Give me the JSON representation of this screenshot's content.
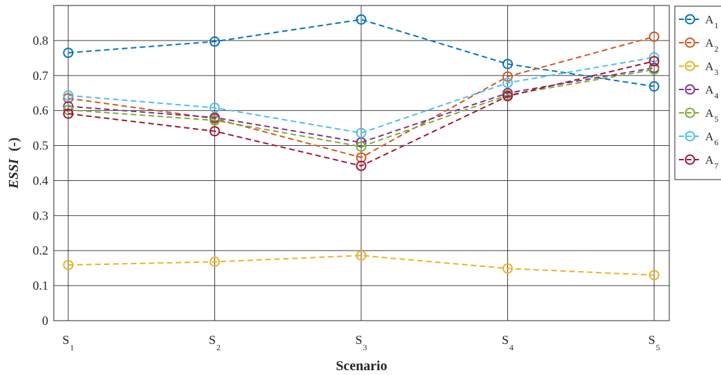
{
  "chart_data": {
    "type": "line",
    "xlabel": "Scenario",
    "ylabel_main": "ESSI",
    "ylabel_unit": "(-)",
    "categories": [
      {
        "base": "S",
        "sub": "1"
      },
      {
        "base": "S",
        "sub": "2"
      },
      {
        "base": "S",
        "sub": "3"
      },
      {
        "base": "S",
        "sub": "4"
      },
      {
        "base": "S",
        "sub": "5"
      }
    ],
    "ylim": [
      0,
      0.9
    ],
    "yticks": [
      "0",
      "0.1",
      "0.2",
      "0.3",
      "0.4",
      "0.5",
      "0.6",
      "0.7",
      "0.8"
    ],
    "grid": true,
    "legend_position": "outside-top-right",
    "series": [
      {
        "name": "A",
        "sub": "1",
        "color": "#0072BD",
        "values": [
          0.765,
          0.797,
          0.86,
          0.733,
          0.669
        ]
      },
      {
        "name": "A",
        "sub": "2",
        "color": "#D95319",
        "values": [
          0.635,
          0.577,
          0.466,
          0.697,
          0.811
        ]
      },
      {
        "name": "A",
        "sub": "3",
        "color": "#EDB120",
        "values": [
          0.159,
          0.168,
          0.186,
          0.149,
          0.13
        ]
      },
      {
        "name": "A",
        "sub": "4",
        "color": "#7E2F8E",
        "values": [
          0.612,
          0.58,
          0.509,
          0.65,
          0.722
        ]
      },
      {
        "name": "A",
        "sub": "5",
        "color": "#77AC30",
        "values": [
          0.602,
          0.572,
          0.497,
          0.644,
          0.717
        ]
      },
      {
        "name": "A",
        "sub": "6",
        "color": "#4DBEEE",
        "values": [
          0.643,
          0.608,
          0.536,
          0.679,
          0.752
        ]
      },
      {
        "name": "A",
        "sub": "7",
        "color": "#A2142F",
        "values": [
          0.591,
          0.541,
          0.442,
          0.641,
          0.741
        ]
      }
    ]
  }
}
